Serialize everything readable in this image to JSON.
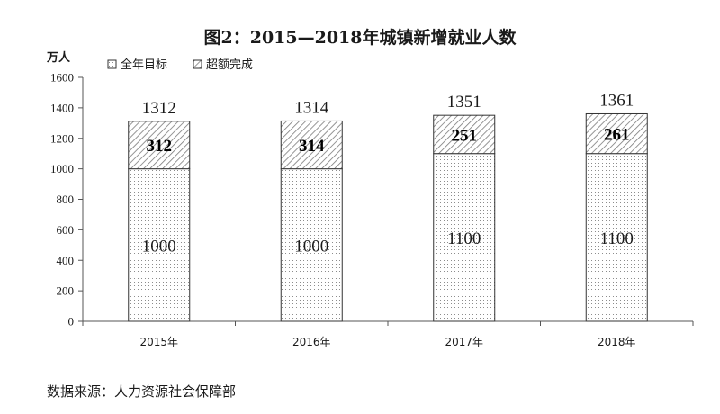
{
  "chart_data": {
    "type": "bar",
    "stacked": true,
    "title": "图2：2015—2018年城镇新增就业人数",
    "ylabel": "万人",
    "categories": [
      "2015年",
      "2016年",
      "2017年",
      "2018年"
    ],
    "series": [
      {
        "name": "全年目标",
        "values": [
          1000,
          1000,
          1100,
          1100
        ],
        "pattern": "dots"
      },
      {
        "name": "超额完成",
        "values": [
          312,
          314,
          251,
          261
        ],
        "pattern": "hatch"
      }
    ],
    "totals": [
      1312,
      1314,
      1351,
      1361
    ],
    "ylim": [
      0,
      1600
    ],
    "yticks": [
      0,
      200,
      400,
      600,
      800,
      1000,
      1200,
      1400,
      1600
    ],
    "legend_position": "top-left",
    "grid": false,
    "source": "数据来源：人力资源社会保障部"
  },
  "colors": {
    "bar_outline": "#333333",
    "pattern_ink": "#8c8c8c",
    "axis": "#555555"
  }
}
